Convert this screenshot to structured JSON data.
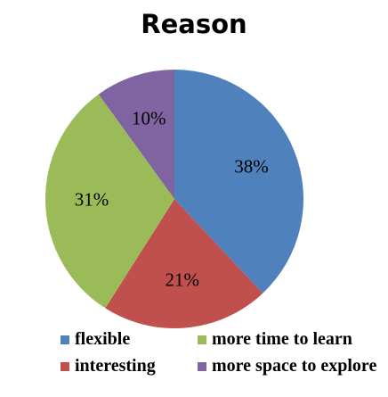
{
  "chart_data": {
    "type": "pie",
    "title": "Reason",
    "slices": [
      {
        "name": "flexible",
        "value": 38,
        "label": "38%",
        "color": "#4f81bd"
      },
      {
        "name": "interesting",
        "value": 21,
        "label": "21%",
        "color": "#c0504d"
      },
      {
        "name": "more time to learn",
        "value": 31,
        "label": "31%",
        "color": "#9bbb59"
      },
      {
        "name": "more space to explore",
        "value": 10,
        "label": "10%",
        "color": "#8064a2"
      }
    ],
    "legend": {
      "placement": "bottom",
      "order": [
        "flexible",
        "more time to learn",
        "interesting",
        "more space to explore"
      ]
    }
  }
}
